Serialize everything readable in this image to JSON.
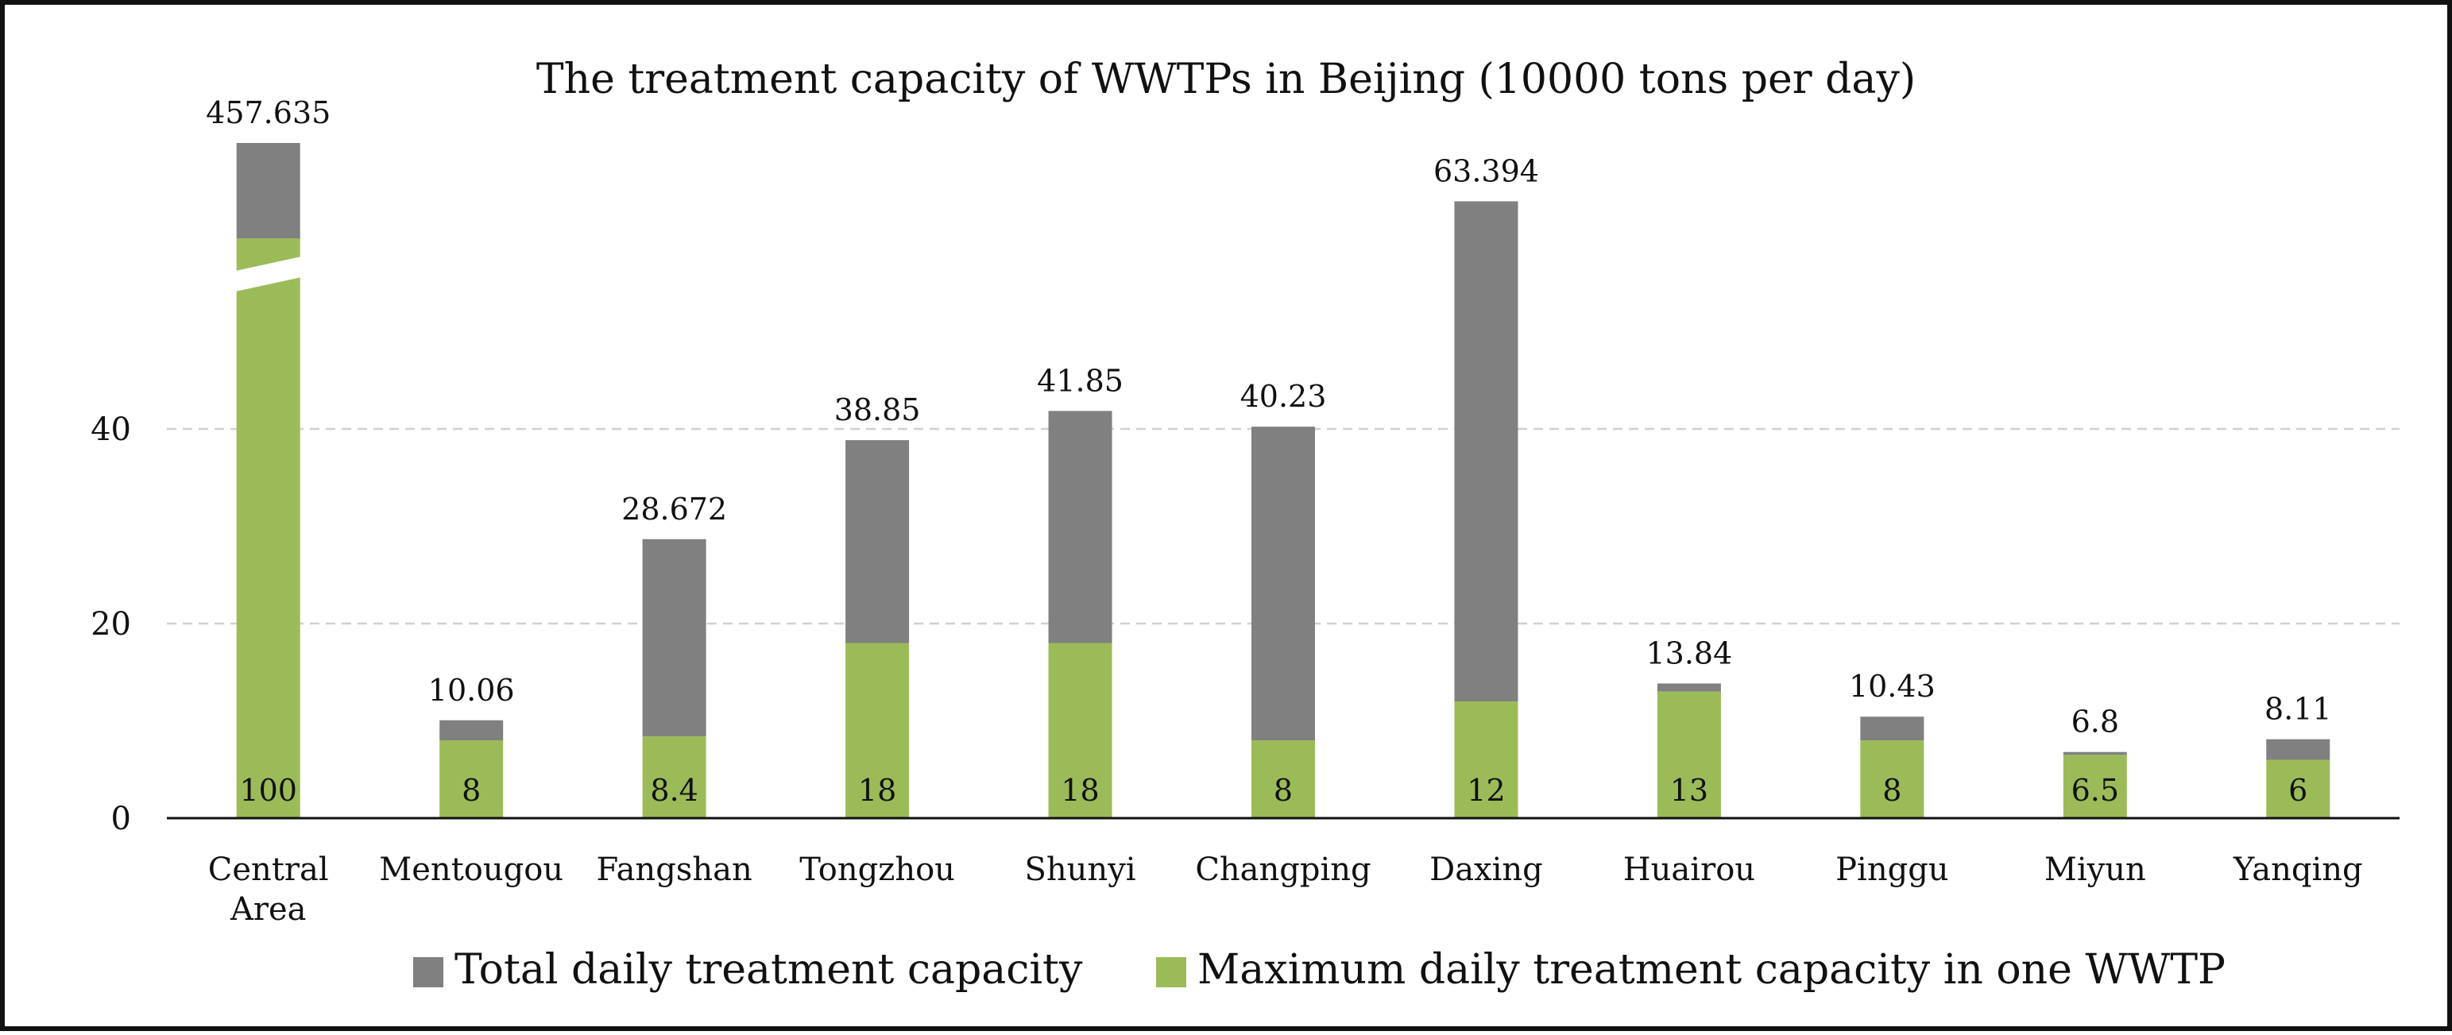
{
  "chart_data": {
    "type": "bar",
    "stacked": true,
    "title": "The treatment capacity of WWTPs in Beijing (10000 tons per day)",
    "xlabel": "",
    "ylabel": "",
    "ylim": [
      0,
      55
    ],
    "yticks": [
      0,
      20,
      40
    ],
    "grid": true,
    "axis_break": "Central Area",
    "categories": [
      [
        "Central",
        "Area"
      ],
      [
        "Mentougou"
      ],
      [
        "Fangshan"
      ],
      [
        "Tongzhou"
      ],
      [
        "Shunyi"
      ],
      [
        "Changping"
      ],
      [
        "Daxing"
      ],
      [
        "Huairou"
      ],
      [
        "Pinggu"
      ],
      [
        "Miyun"
      ],
      [
        "Yanqing"
      ]
    ],
    "series": [
      {
        "name": "Maximum daily treatment capacity in one WWTP",
        "color": "#9bbb59",
        "values": [
          100,
          8,
          8.4,
          18,
          18,
          8,
          12,
          13,
          8,
          6.5,
          6
        ],
        "labels": [
          "100",
          "8",
          "8.4",
          "18",
          "18",
          "8",
          "12",
          "13",
          "8",
          "6.5",
          "6"
        ]
      },
      {
        "name": "Total daily treatment capacity",
        "color": "#808080",
        "values": [
          457.635,
          10.06,
          28.672,
          38.85,
          41.85,
          40.23,
          63.394,
          13.84,
          10.43,
          6.8,
          8.11
        ],
        "labels": [
          "457.635",
          "10.06",
          "28.672",
          "38.85",
          "41.85",
          "40.23",
          "63.394",
          "13.84",
          "10.43",
          "6.8",
          "8.11"
        ]
      }
    ],
    "legend": {
      "position": "bottom",
      "order": [
        "Total daily treatment capacity",
        "Maximum daily treatment capacity in one WWTP"
      ]
    },
    "colors": {
      "total": "#808080",
      "max": "#9bbb59",
      "grid": "#d0d0d0",
      "axis": "#111111"
    }
  }
}
